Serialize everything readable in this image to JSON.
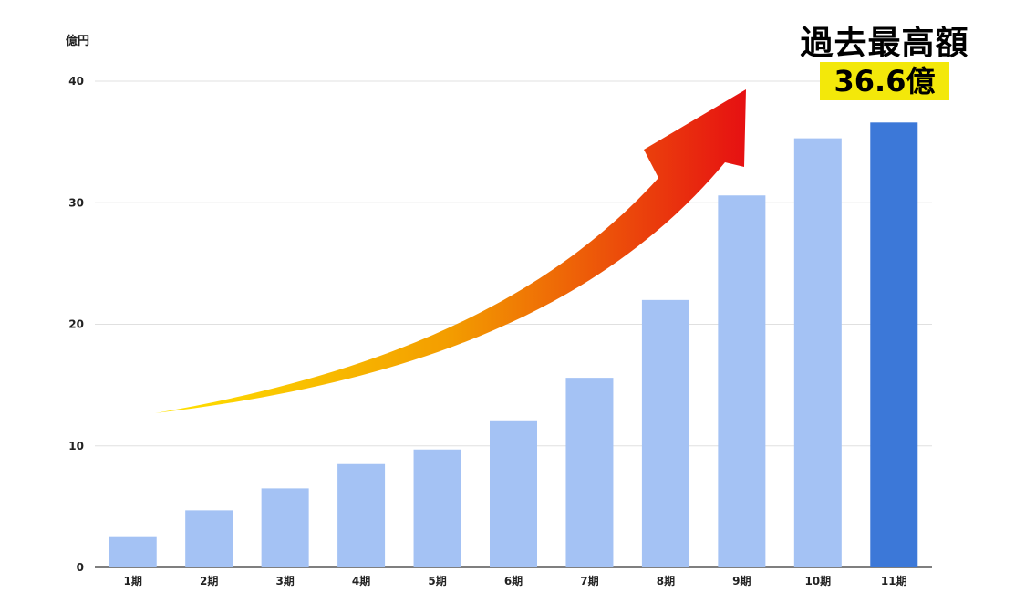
{
  "chart_data": {
    "type": "bar",
    "ylabel": "億円",
    "ylim": [
      0,
      40
    ],
    "yticks": [
      0,
      10,
      20,
      30,
      40
    ],
    "categories": [
      "1期",
      "2期",
      "3期",
      "4期",
      "5期",
      "6期",
      "7期",
      "8期",
      "9期",
      "10期",
      "11期"
    ],
    "values": [
      2.5,
      4.7,
      6.5,
      8.5,
      9.7,
      12.1,
      15.6,
      22.0,
      30.6,
      35.3,
      36.6
    ],
    "highlight_index": 10,
    "grid": true,
    "colors": {
      "bar": "#a4c2f4",
      "highlight": "#3c78d8",
      "grid": "#e0e0e0",
      "badge": "#f3e80a"
    }
  },
  "annotation": {
    "headline": "過去最高額",
    "value_label": "36.6億"
  }
}
